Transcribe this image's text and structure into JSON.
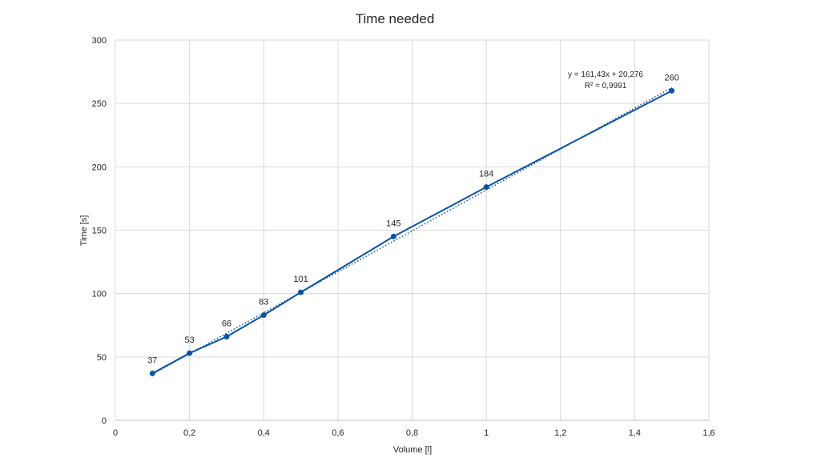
{
  "chart_data": {
    "type": "scatter",
    "title": "Time needed",
    "xlabel": "Volume [l]",
    "ylabel": "Time [s]",
    "xlim": [
      0,
      1.6
    ],
    "ylim": [
      0,
      300
    ],
    "x_ticks": [
      "0",
      "0,2",
      "0,4",
      "0,6",
      "0,8",
      "1",
      "1,2",
      "1,4",
      "1,6"
    ],
    "y_ticks": [
      "0",
      "50",
      "100",
      "150",
      "200",
      "250",
      "300"
    ],
    "grid": true,
    "legend": "none",
    "series": [
      {
        "color": "#0b53a6",
        "style": "solid-line-with-markers",
        "x": [
          0.1,
          0.2,
          0.3,
          0.4,
          0.5,
          0.75,
          1,
          1.5
        ],
        "y": [
          37,
          53,
          66,
          83,
          101,
          145,
          184,
          260
        ],
        "labels": [
          "37",
          "53",
          "66",
          "83",
          "101",
          "145",
          "184",
          "260"
        ]
      }
    ],
    "trendline": {
      "type": "linear",
      "style": "dotted",
      "color": "#0b53a6",
      "slope": 161.43,
      "intercept": 20.276,
      "x_range": [
        0.1,
        1.5
      ],
      "equation": "y = 161,43x + 20,276",
      "r_squared": "R² = 0,9991"
    }
  }
}
